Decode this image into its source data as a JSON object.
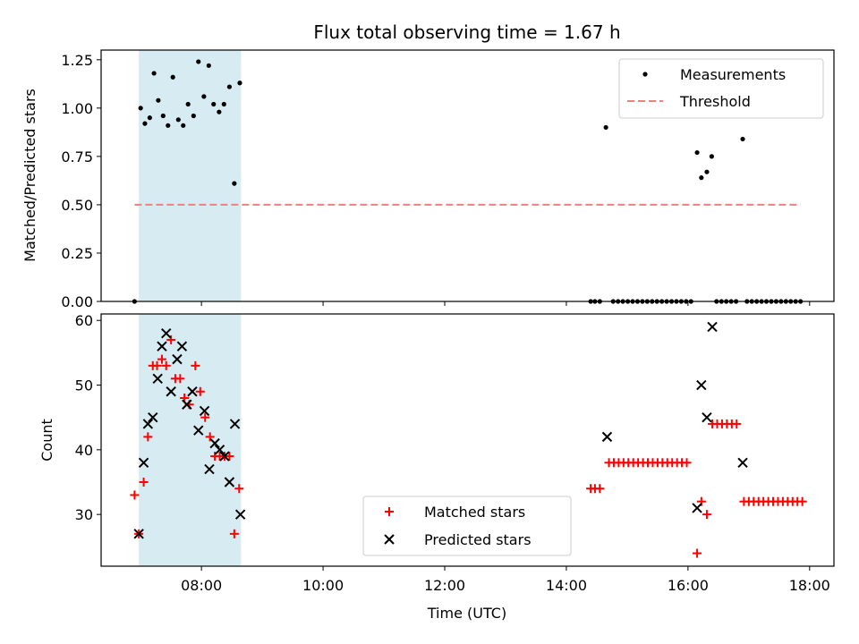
{
  "chart_data": {
    "title": "Flux total observing time = 1.67 h",
    "xlabel": "Time (UTC)",
    "x_ticks": [
      "08:00",
      "10:00",
      "12:00",
      "14:00",
      "16:00",
      "18:00"
    ],
    "x_tick_hours": [
      8,
      10,
      12,
      14,
      16,
      18
    ],
    "xlim": [
      6.35,
      18.4
    ],
    "shaded_interval": [
      6.97,
      8.65
    ],
    "shade_color": "#add8e6",
    "panels": [
      {
        "type": "scatter",
        "ylabel": "Matched/Predicted stars",
        "ylim": [
          0,
          1.3
        ],
        "yticks": [
          "0.00",
          "0.25",
          "0.50",
          "0.75",
          "1.00",
          "1.25"
        ],
        "ytick_values": [
          0,
          0.25,
          0.5,
          0.75,
          1.0,
          1.25
        ],
        "legend_position": "upper right",
        "series": [
          {
            "name": "Measurements",
            "marker": "dot",
            "color": "#000000",
            "points": [
              [
                6.9,
                0.0
              ],
              [
                7.0,
                1.0
              ],
              [
                7.07,
                0.92
              ],
              [
                7.15,
                0.95
              ],
              [
                7.22,
                1.18
              ],
              [
                7.29,
                1.04
              ],
              [
                7.37,
                0.96
              ],
              [
                7.45,
                0.91
              ],
              [
                7.53,
                1.16
              ],
              [
                7.62,
                0.94
              ],
              [
                7.7,
                0.91
              ],
              [
                7.78,
                1.02
              ],
              [
                7.87,
                0.96
              ],
              [
                7.95,
                1.24
              ],
              [
                8.04,
                1.06
              ],
              [
                8.12,
                1.22
              ],
              [
                8.2,
                1.02
              ],
              [
                8.29,
                0.98
              ],
              [
                8.37,
                1.02
              ],
              [
                8.46,
                1.11
              ],
              [
                8.54,
                0.61
              ],
              [
                8.63,
                1.13
              ],
              [
                14.4,
                0.0
              ],
              [
                14.47,
                0.0
              ],
              [
                14.55,
                0.0
              ],
              [
                14.65,
                0.9
              ],
              [
                14.77,
                0.0
              ],
              [
                14.85,
                0.0
              ],
              [
                14.93,
                0.0
              ],
              [
                15.01,
                0.0
              ],
              [
                15.09,
                0.0
              ],
              [
                15.17,
                0.0
              ],
              [
                15.25,
                0.0
              ],
              [
                15.33,
                0.0
              ],
              [
                15.41,
                0.0
              ],
              [
                15.49,
                0.0
              ],
              [
                15.57,
                0.0
              ],
              [
                15.65,
                0.0
              ],
              [
                15.73,
                0.0
              ],
              [
                15.81,
                0.0
              ],
              [
                15.89,
                0.0
              ],
              [
                15.97,
                0.0
              ],
              [
                16.05,
                0.0
              ],
              [
                16.15,
                0.77
              ],
              [
                16.22,
                0.64
              ],
              [
                16.31,
                0.67
              ],
              [
                16.39,
                0.75
              ],
              [
                16.47,
                0.0
              ],
              [
                16.55,
                0.0
              ],
              [
                16.63,
                0.0
              ],
              [
                16.71,
                0.0
              ],
              [
                16.79,
                0.0
              ],
              [
                16.9,
                0.84
              ],
              [
                16.97,
                0.0
              ],
              [
                17.05,
                0.0
              ],
              [
                17.13,
                0.0
              ],
              [
                17.21,
                0.0
              ],
              [
                17.29,
                0.0
              ],
              [
                17.37,
                0.0
              ],
              [
                17.45,
                0.0
              ],
              [
                17.53,
                0.0
              ],
              [
                17.61,
                0.0
              ],
              [
                17.69,
                0.0
              ],
              [
                17.77,
                0.0
              ],
              [
                17.85,
                0.0
              ]
            ]
          },
          {
            "name": "Threshold",
            "type": "line",
            "style": "dashed",
            "color": "#f08080",
            "x": [
              6.9,
              17.85
            ],
            "y": [
              0.5,
              0.5
            ]
          }
        ]
      },
      {
        "type": "scatter",
        "ylabel": "Count",
        "ylim": [
          22,
          61
        ],
        "yticks": [
          "30",
          "40",
          "50",
          "60"
        ],
        "ytick_values": [
          30,
          40,
          50,
          60
        ],
        "legend_position": "lower center",
        "series": [
          {
            "name": "Matched stars",
            "marker": "plus",
            "color": "#ff0000",
            "points": [
              [
                6.9,
                33
              ],
              [
                6.97,
                27
              ],
              [
                7.05,
                35
              ],
              [
                7.12,
                42
              ],
              [
                7.2,
                53
              ],
              [
                7.27,
                53
              ],
              [
                7.35,
                54
              ],
              [
                7.42,
                53
              ],
              [
                7.5,
                57
              ],
              [
                7.57,
                51
              ],
              [
                7.65,
                51
              ],
              [
                7.72,
                48
              ],
              [
                7.8,
                47
              ],
              [
                7.9,
                53
              ],
              [
                7.98,
                49
              ],
              [
                8.06,
                45
              ],
              [
                8.14,
                42
              ],
              [
                8.22,
                39
              ],
              [
                8.3,
                39
              ],
              [
                8.38,
                39
              ],
              [
                8.46,
                39
              ],
              [
                8.54,
                27
              ],
              [
                8.62,
                34
              ],
              [
                14.4,
                34
              ],
              [
                14.47,
                34
              ],
              [
                14.55,
                34
              ],
              [
                14.7,
                38
              ],
              [
                14.78,
                38
              ],
              [
                14.86,
                38
              ],
              [
                14.94,
                38
              ],
              [
                15.02,
                38
              ],
              [
                15.1,
                38
              ],
              [
                15.18,
                38
              ],
              [
                15.26,
                38
              ],
              [
                15.34,
                38
              ],
              [
                15.42,
                38
              ],
              [
                15.5,
                38
              ],
              [
                15.58,
                38
              ],
              [
                15.66,
                38
              ],
              [
                15.74,
                38
              ],
              [
                15.82,
                38
              ],
              [
                15.9,
                38
              ],
              [
                15.98,
                38
              ],
              [
                16.15,
                24
              ],
              [
                16.22,
                32
              ],
              [
                16.31,
                30
              ],
              [
                16.4,
                44
              ],
              [
                16.48,
                44
              ],
              [
                16.56,
                44
              ],
              [
                16.64,
                44
              ],
              [
                16.72,
                44
              ],
              [
                16.8,
                44
              ],
              [
                16.92,
                32
              ],
              [
                17.0,
                32
              ],
              [
                17.08,
                32
              ],
              [
                17.16,
                32
              ],
              [
                17.24,
                32
              ],
              [
                17.32,
                32
              ],
              [
                17.4,
                32
              ],
              [
                17.48,
                32
              ],
              [
                17.56,
                32
              ],
              [
                17.64,
                32
              ],
              [
                17.72,
                32
              ],
              [
                17.8,
                32
              ],
              [
                17.88,
                32
              ]
            ]
          },
          {
            "name": "Predicted stars",
            "marker": "x",
            "color": "#000000",
            "points": [
              [
                6.97,
                27
              ],
              [
                7.05,
                38
              ],
              [
                7.12,
                44
              ],
              [
                7.2,
                45
              ],
              [
                7.28,
                51
              ],
              [
                7.35,
                56
              ],
              [
                7.42,
                58
              ],
              [
                7.5,
                49
              ],
              [
                7.6,
                54
              ],
              [
                7.68,
                56
              ],
              [
                7.76,
                47
              ],
              [
                7.85,
                49
              ],
              [
                7.95,
                43
              ],
              [
                8.05,
                46
              ],
              [
                8.13,
                37
              ],
              [
                8.22,
                41
              ],
              [
                8.3,
                40
              ],
              [
                8.38,
                39
              ],
              [
                8.46,
                35
              ],
              [
                8.55,
                44
              ],
              [
                8.64,
                30
              ],
              [
                14.67,
                42
              ],
              [
                16.15,
                31
              ],
              [
                16.22,
                50
              ],
              [
                16.31,
                45
              ],
              [
                16.4,
                59
              ],
              [
                16.9,
                38
              ]
            ]
          }
        ]
      }
    ]
  }
}
